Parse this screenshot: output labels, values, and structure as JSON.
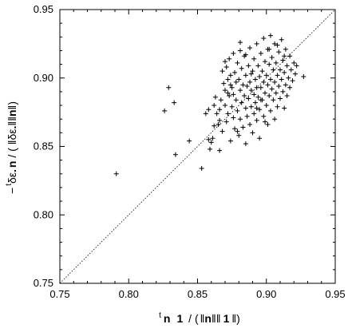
{
  "chart_data": {
    "type": "scatter",
    "xlabel": {
      "sup": "t",
      "main": "n",
      "mid": "1 / (",
      "n": "n",
      "one": "1"
    },
    "ylabel": {
      "prefix": "−",
      "sup": "t",
      "eps": "δε",
      "n": "n",
      "mid": " / ( ‖δε",
      "tail": "‖‖",
      "end": "‖)"
    },
    "xlim": [
      0.75,
      0.95
    ],
    "ylim": [
      0.75,
      0.95
    ],
    "x_ticks": [
      "0.75",
      "0.80",
      "0.85",
      "0.90",
      "0.95"
    ],
    "y_ticks": [
      "0.75",
      "0.80",
      "0.85",
      "0.90",
      "0.95"
    ],
    "reference_line": "y = x (dotted)",
    "marker": "+",
    "points": [
      [
        0.791,
        0.83
      ],
      [
        0.826,
        0.876
      ],
      [
        0.829,
        0.893
      ],
      [
        0.833,
        0.882
      ],
      [
        0.834,
        0.844
      ],
      [
        0.844,
        0.854
      ],
      [
        0.853,
        0.834
      ],
      [
        0.856,
        0.874
      ],
      [
        0.858,
        0.877
      ],
      [
        0.858,
        0.855
      ],
      [
        0.859,
        0.848
      ],
      [
        0.86,
        0.853
      ],
      [
        0.861,
        0.856
      ],
      [
        0.862,
        0.88
      ],
      [
        0.862,
        0.865
      ],
      [
        0.863,
        0.886
      ],
      [
        0.864,
        0.874
      ],
      [
        0.865,
        0.866
      ],
      [
        0.866,
        0.869
      ],
      [
        0.866,
        0.847
      ],
      [
        0.867,
        0.884
      ],
      [
        0.868,
        0.905
      ],
      [
        0.868,
        0.861
      ],
      [
        0.869,
        0.896
      ],
      [
        0.87,
        0.891
      ],
      [
        0.87,
        0.88
      ],
      [
        0.871,
        0.908
      ],
      [
        0.871,
        0.868
      ],
      [
        0.872,
        0.899
      ],
      [
        0.872,
        0.874
      ],
      [
        0.873,
        0.914
      ],
      [
        0.873,
        0.887
      ],
      [
        0.874,
        0.902
      ],
      [
        0.874,
        0.854
      ],
      [
        0.875,
        0.893
      ],
      [
        0.875,
        0.879
      ],
      [
        0.876,
        0.918
      ],
      [
        0.876,
        0.888
      ],
      [
        0.876,
        0.871
      ],
      [
        0.877,
        0.904
      ],
      [
        0.877,
        0.863
      ],
      [
        0.878,
        0.897
      ],
      [
        0.878,
        0.884
      ],
      [
        0.879,
        0.911
      ],
      [
        0.879,
        0.876
      ],
      [
        0.88,
        0.899
      ],
      [
        0.88,
        0.858
      ],
      [
        0.881,
        0.92
      ],
      [
        0.881,
        0.891
      ],
      [
        0.881,
        0.87
      ],
      [
        0.882,
        0.907
      ],
      [
        0.882,
        0.882
      ],
      [
        0.883,
        0.895
      ],
      [
        0.883,
        0.864
      ],
      [
        0.884,
        0.916
      ],
      [
        0.884,
        0.887
      ],
      [
        0.885,
        0.902
      ],
      [
        0.885,
        0.878
      ],
      [
        0.885,
        0.852
      ],
      [
        0.886,
        0.894
      ],
      [
        0.886,
        0.872
      ],
      [
        0.887,
        0.909
      ],
      [
        0.887,
        0.885
      ],
      [
        0.888,
        0.922
      ],
      [
        0.888,
        0.897
      ],
      [
        0.888,
        0.866
      ],
      [
        0.889,
        0.891
      ],
      [
        0.889,
        0.879
      ],
      [
        0.89,
        0.905
      ],
      [
        0.89,
        0.86
      ],
      [
        0.891,
        0.914
      ],
      [
        0.891,
        0.888
      ],
      [
        0.891,
        0.874
      ],
      [
        0.892,
        0.899
      ],
      [
        0.892,
        0.882
      ],
      [
        0.893,
        0.925
      ],
      [
        0.893,
        0.893
      ],
      [
        0.893,
        0.869
      ],
      [
        0.894,
        0.909
      ],
      [
        0.894,
        0.886
      ],
      [
        0.895,
        0.901
      ],
      [
        0.895,
        0.877
      ],
      [
        0.895,
        0.856
      ],
      [
        0.896,
        0.918
      ],
      [
        0.896,
        0.893
      ],
      [
        0.897,
        0.905
      ],
      [
        0.897,
        0.884
      ],
      [
        0.898,
        0.929
      ],
      [
        0.898,
        0.897
      ],
      [
        0.898,
        0.872
      ],
      [
        0.899,
        0.912
      ],
      [
        0.899,
        0.889
      ],
      [
        0.9,
        0.902
      ],
      [
        0.9,
        0.88
      ],
      [
        0.901,
        0.921
      ],
      [
        0.901,
        0.895
      ],
      [
        0.901,
        0.866
      ],
      [
        0.902,
        0.91
      ],
      [
        0.902,
        0.887
      ],
      [
        0.903,
        0.931
      ],
      [
        0.903,
        0.899
      ],
      [
        0.903,
        0.876
      ],
      [
        0.904,
        0.915
      ],
      [
        0.904,
        0.892
      ],
      [
        0.905,
        0.906
      ],
      [
        0.905,
        0.884
      ],
      [
        0.906,
        0.925
      ],
      [
        0.906,
        0.897
      ],
      [
        0.906,
        0.87
      ],
      [
        0.907,
        0.911
      ],
      [
        0.907,
        0.889
      ],
      [
        0.908,
        0.902
      ],
      [
        0.908,
        0.879
      ],
      [
        0.909,
        0.919
      ],
      [
        0.909,
        0.894
      ],
      [
        0.91,
        0.906
      ],
      [
        0.91,
        0.885
      ],
      [
        0.911,
        0.928
      ],
      [
        0.911,
        0.899
      ],
      [
        0.912,
        0.913
      ],
      [
        0.912,
        0.89
      ],
      [
        0.913,
        0.904
      ],
      [
        0.913,
        0.878
      ],
      [
        0.914,
        0.921
      ],
      [
        0.914,
        0.895
      ],
      [
        0.915,
        0.909
      ],
      [
        0.915,
        0.887
      ],
      [
        0.916,
        0.9
      ],
      [
        0.917,
        0.916
      ],
      [
        0.917,
        0.893
      ],
      [
        0.918,
        0.906
      ],
      [
        0.919,
        0.898
      ],
      [
        0.92,
        0.911
      ],
      [
        0.921,
        0.903
      ],
      [
        0.922,
        0.909
      ],
      [
        0.927,
        0.901
      ],
      [
        0.885,
        0.917
      ],
      [
        0.872,
        0.889
      ],
      [
        0.899,
        0.868
      ],
      [
        0.908,
        0.924
      ],
      [
        0.881,
        0.926
      ],
      [
        0.896,
        0.884
      ],
      [
        0.866,
        0.877
      ],
      [
        0.874,
        0.895
      ],
      [
        0.889,
        0.903
      ],
      [
        0.902,
        0.921
      ],
      [
        0.913,
        0.916
      ],
      [
        0.879,
        0.861
      ],
      [
        0.893,
        0.878
      ],
      [
        0.87,
        0.912
      ]
    ]
  }
}
